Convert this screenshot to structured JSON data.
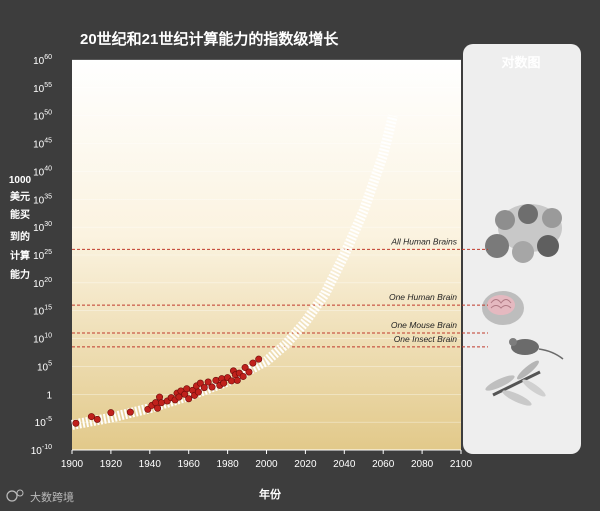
{
  "chart_data": {
    "type": "scatter",
    "title": "20世纪和21世纪计算能力的指数级增长",
    "xlabel": "年份",
    "ylabel_lines": [
      "1000",
      "美元",
      "能买",
      "到的",
      "计算",
      "能力"
    ],
    "side_panel_title": "对数图",
    "watermark": "大数跨境",
    "x_ticks": [
      1900,
      1920,
      1940,
      1960,
      1980,
      2000,
      2020,
      2040,
      2060,
      2080,
      2100
    ],
    "xlim": [
      1900,
      2100
    ],
    "y_scale": "log10",
    "ylim_exponent": [
      -10,
      60
    ],
    "y_ticks": [
      {
        "exp": 60,
        "base": "10",
        "sup": "60"
      },
      {
        "exp": 55,
        "base": "10",
        "sup": "55"
      },
      {
        "exp": 50,
        "base": "10",
        "sup": "50"
      },
      {
        "exp": 45,
        "base": "10",
        "sup": "45"
      },
      {
        "exp": 40,
        "base": "10",
        "sup": "40"
      },
      {
        "exp": 35,
        "base": "10",
        "sup": "35"
      },
      {
        "exp": 30,
        "base": "10",
        "sup": "30"
      },
      {
        "exp": 25,
        "base": "10",
        "sup": "25"
      },
      {
        "exp": 20,
        "base": "10",
        "sup": "20"
      },
      {
        "exp": 15,
        "base": "10",
        "sup": "15"
      },
      {
        "exp": 10,
        "base": "10",
        "sup": "10"
      },
      {
        "exp": 5,
        "base": "10",
        "sup": "5"
      },
      {
        "exp": 0,
        "base": "1",
        "sup": ""
      },
      {
        "exp": -5,
        "base": "10",
        "sup": "-5"
      },
      {
        "exp": -10,
        "base": "10",
        "sup": "-10"
      }
    ],
    "thresholds": [
      {
        "label": "All Human Brains",
        "exp": 26
      },
      {
        "label": "One Human Brain",
        "exp": 16
      },
      {
        "label": "One Mouse Brain",
        "exp": 11
      },
      {
        "label": "One Insect Brain",
        "exp": 8.5
      }
    ],
    "projection_curve": [
      [
        1900,
        -5.5
      ],
      [
        1920,
        -4.2
      ],
      [
        1940,
        -2.5
      ],
      [
        1960,
        -0.3
      ],
      [
        1980,
        2.3
      ],
      [
        2000,
        6.0
      ],
      [
        2010,
        9.0
      ],
      [
        2020,
        13.0
      ],
      [
        2030,
        18.0
      ],
      [
        2040,
        25.0
      ],
      [
        2050,
        33.0
      ],
      [
        2060,
        43.0
      ],
      [
        2065,
        50.0
      ]
    ],
    "series": [
      {
        "points": [
          [
            1902,
            -5.2
          ],
          [
            1910,
            -4.0
          ],
          [
            1913,
            -4.5
          ],
          [
            1920,
            -3.3
          ],
          [
            1930,
            -3.2
          ],
          [
            1939,
            -2.7
          ],
          [
            1941,
            -2.0
          ],
          [
            1943,
            -1.5
          ],
          [
            1944,
            -2.5
          ],
          [
            1945,
            -0.5
          ],
          [
            1946,
            -1.5
          ],
          [
            1949,
            -1.2
          ],
          [
            1951,
            -0.6
          ],
          [
            1953,
            -1.0
          ],
          [
            1954,
            0.2
          ],
          [
            1955,
            -0.5
          ],
          [
            1956,
            0.6
          ],
          [
            1958,
            0.0
          ],
          [
            1959,
            1.0
          ],
          [
            1960,
            -0.8
          ],
          [
            1962,
            0.7
          ],
          [
            1963,
            -0.2
          ],
          [
            1964,
            1.5
          ],
          [
            1965,
            0.4
          ],
          [
            1966,
            2.0
          ],
          [
            1968,
            1.2
          ],
          [
            1970,
            2.2
          ],
          [
            1972,
            1.3
          ],
          [
            1974,
            2.5
          ],
          [
            1976,
            1.6
          ],
          [
            1977,
            2.8
          ],
          [
            1978,
            2.0
          ],
          [
            1980,
            3.0
          ],
          [
            1982,
            2.4
          ],
          [
            1983,
            4.2
          ],
          [
            1984,
            3.5
          ],
          [
            1985,
            2.5
          ],
          [
            1986,
            3.8
          ],
          [
            1988,
            3.2
          ],
          [
            1989,
            4.8
          ],
          [
            1991,
            4.0
          ],
          [
            1993,
            5.6
          ],
          [
            1996,
            6.3
          ]
        ]
      }
    ]
  }
}
